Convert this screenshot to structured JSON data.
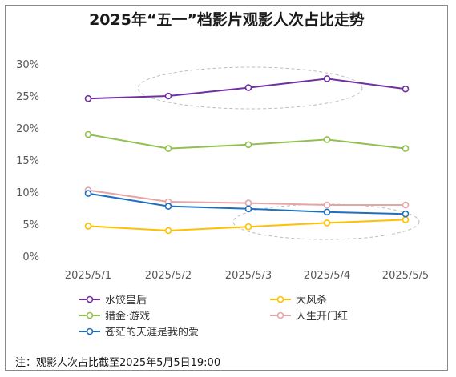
{
  "chart_data": {
    "type": "line",
    "title": "2025年“五一”档影片观影人次占比走势",
    "x": [
      "2025/5/1",
      "2025/5/2",
      "2025/5/3",
      "2025/5/4",
      "2025/5/5"
    ],
    "y_ticks": [
      "0%",
      "5%",
      "10%",
      "15%",
      "20%",
      "25%",
      "30%"
    ],
    "ylim": [
      0,
      30
    ],
    "grid": false,
    "legend_position": "bottom",
    "series": [
      {
        "name": "水饺皇后",
        "color": "#7030a0",
        "values": [
          24.6,
          25.0,
          26.3,
          27.7,
          26.1
        ]
      },
      {
        "name": "大风杀",
        "color": "#ffc000",
        "values": [
          4.7,
          4.0,
          4.6,
          5.2,
          5.7
        ]
      },
      {
        "name": "猎金·游戏",
        "color": "#92c050",
        "values": [
          19.0,
          16.8,
          17.4,
          18.2,
          16.8
        ]
      },
      {
        "name": "人生开门红",
        "color": "#e6a4a4",
        "values": [
          10.3,
          8.5,
          8.3,
          8.0,
          8.0
        ]
      },
      {
        "name": "苍茫的天涯是我的爱",
        "color": "#1f6fbf",
        "values": [
          9.8,
          7.8,
          7.4,
          6.9,
          6.6
        ]
      }
    ],
    "note": "注：观影人次占比截至2025年5月5日19:00"
  }
}
